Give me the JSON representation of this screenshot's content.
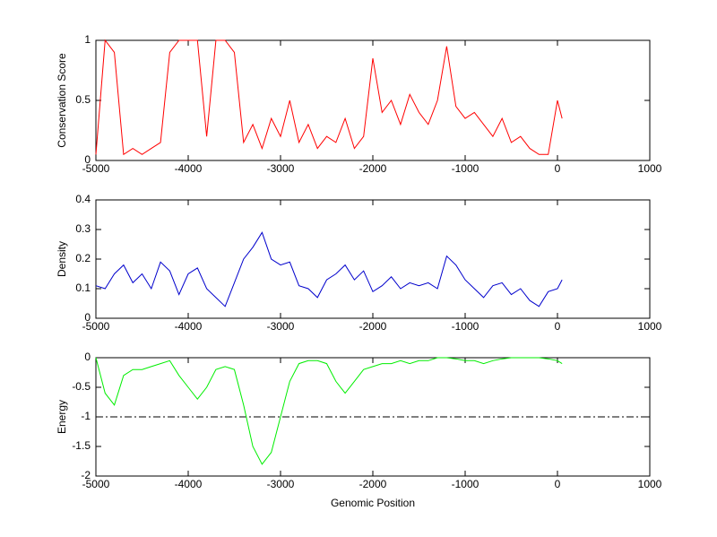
{
  "chart_data": [
    {
      "type": "line",
      "ylabel": "Conservation Score",
      "x": [
        -5000,
        -4900,
        -4800,
        -4700,
        -4600,
        -4500,
        -4400,
        -4300,
        -4200,
        -4100,
        -4000,
        -3900,
        -3800,
        -3700,
        -3600,
        -3500,
        -3400,
        -3300,
        -3200,
        -3100,
        -3000,
        -2900,
        -2800,
        -2700,
        -2600,
        -2500,
        -2400,
        -2300,
        -2200,
        -2100,
        -2000,
        -1900,
        -1800,
        -1700,
        -1600,
        -1500,
        -1400,
        -1300,
        -1200,
        -1100,
        -1000,
        -900,
        -800,
        -700,
        -600,
        -500,
        -400,
        -300,
        -200,
        -100,
        0,
        50
      ],
      "series": [
        {
          "color": "#ff0000",
          "values": [
            0.05,
            1,
            0.9,
            0.05,
            0.1,
            0.05,
            0.1,
            0.15,
            0.9,
            1,
            1,
            1,
            0.2,
            1,
            1,
            0.9,
            0.15,
            0.3,
            0.1,
            0.35,
            0.2,
            0.5,
            0.15,
            0.3,
            0.1,
            0.2,
            0.15,
            0.35,
            0.1,
            0.2,
            0.85,
            0.4,
            0.5,
            0.3,
            0.55,
            0.4,
            0.3,
            0.5,
            0.95,
            0.45,
            0.35,
            0.4,
            0.3,
            0.2,
            0.35,
            0.15,
            0.2,
            0.1,
            0.05,
            0.05,
            0.5,
            0.35
          ]
        }
      ],
      "xlim": [
        -5000,
        1000
      ],
      "xticks": [
        -5000,
        -4000,
        -3000,
        -2000,
        -1000,
        0,
        1000
      ],
      "ylim": [
        0,
        1
      ],
      "yticks": [
        0,
        0.5,
        1
      ]
    },
    {
      "type": "line",
      "ylabel": "Density",
      "x": [
        -5000,
        -4900,
        -4800,
        -4700,
        -4600,
        -4500,
        -4400,
        -4300,
        -4200,
        -4100,
        -4000,
        -3900,
        -3800,
        -3700,
        -3600,
        -3500,
        -3400,
        -3300,
        -3200,
        -3100,
        -3000,
        -2900,
        -2800,
        -2700,
        -2600,
        -2500,
        -2400,
        -2300,
        -2200,
        -2100,
        -2000,
        -1900,
        -1800,
        -1700,
        -1600,
        -1500,
        -1400,
        -1300,
        -1200,
        -1100,
        -1000,
        -900,
        -800,
        -700,
        -600,
        -500,
        -400,
        -300,
        -200,
        -100,
        0,
        50
      ],
      "series": [
        {
          "color": "#0000cc",
          "values": [
            0.11,
            0.1,
            0.15,
            0.18,
            0.12,
            0.15,
            0.1,
            0.19,
            0.16,
            0.08,
            0.15,
            0.17,
            0.1,
            0.07,
            0.04,
            0.12,
            0.2,
            0.24,
            0.29,
            0.2,
            0.18,
            0.19,
            0.11,
            0.1,
            0.07,
            0.13,
            0.15,
            0.18,
            0.13,
            0.16,
            0.09,
            0.11,
            0.14,
            0.1,
            0.12,
            0.11,
            0.12,
            0.1,
            0.21,
            0.18,
            0.13,
            0.1,
            0.07,
            0.11,
            0.12,
            0.08,
            0.1,
            0.06,
            0.04,
            0.09,
            0.1,
            0.13
          ]
        }
      ],
      "xlim": [
        -5000,
        1000
      ],
      "xticks": [
        -5000,
        -4000,
        -3000,
        -2000,
        -1000,
        0,
        1000
      ],
      "ylim": [
        0,
        0.4
      ],
      "yticks": [
        0,
        0.1,
        0.2,
        0.3,
        0.4
      ]
    },
    {
      "type": "line",
      "ylabel": "Energy",
      "xlabel": "Genomic Position",
      "x": [
        -5000,
        -4900,
        -4800,
        -4700,
        -4600,
        -4500,
        -4400,
        -4300,
        -4200,
        -4100,
        -4000,
        -3900,
        -3800,
        -3700,
        -3600,
        -3500,
        -3400,
        -3300,
        -3200,
        -3100,
        -3000,
        -2900,
        -2800,
        -2700,
        -2600,
        -2500,
        -2400,
        -2300,
        -2200,
        -2100,
        -2000,
        -1900,
        -1800,
        -1700,
        -1600,
        -1500,
        -1400,
        -1300,
        -1200,
        -1100,
        -1000,
        -900,
        -800,
        -700,
        -600,
        -500,
        -400,
        -300,
        -200,
        -100,
        0,
        50
      ],
      "series": [
        {
          "color": "#00ee00",
          "values": [
            0,
            -0.6,
            -0.8,
            -0.3,
            -0.2,
            -0.2,
            -0.15,
            -0.1,
            -0.05,
            -0.3,
            -0.5,
            -0.7,
            -0.5,
            -0.2,
            -0.15,
            -0.2,
            -0.8,
            -1.5,
            -1.8,
            -1.6,
            -1.0,
            -0.4,
            -0.1,
            -0.05,
            -0.05,
            -0.1,
            -0.4,
            -0.6,
            -0.4,
            -0.2,
            -0.15,
            -0.1,
            -0.1,
            -0.05,
            -0.1,
            -0.05,
            -0.05,
            0,
            0,
            -0.02,
            -0.05,
            -0.05,
            -0.1,
            -0.05,
            -0.02,
            0,
            0,
            0,
            0,
            -0.02,
            -0.05,
            -0.1
          ]
        }
      ],
      "reference_line": -1,
      "xlim": [
        -5000,
        1000
      ],
      "xticks": [
        -5000,
        -4000,
        -3000,
        -2000,
        -1000,
        0,
        1000
      ],
      "ylim": [
        -2,
        0
      ],
      "yticks": [
        -2,
        -1.5,
        -1,
        -0.5,
        0
      ]
    }
  ]
}
